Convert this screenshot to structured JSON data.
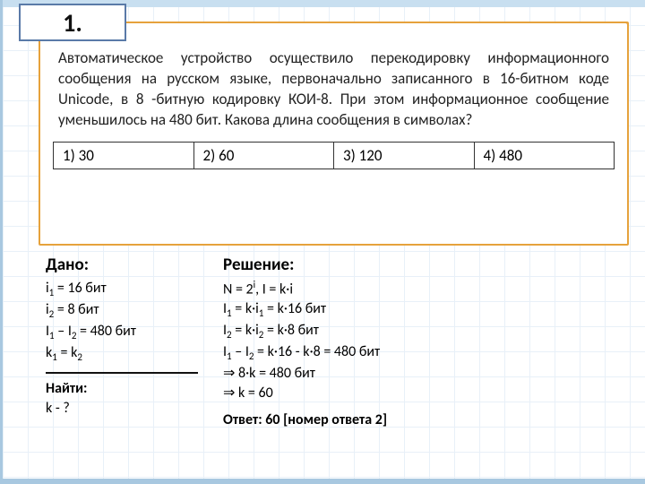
{
  "task_number": "1.",
  "problem_text": "Автоматическое устройство осуществило перекодировку информационного сообщения на русском языке, первоначально записанного в 16-битном коде Unicode, в 8 -битную кодировку КОИ-8. При этом информационное сообщение уменьшилось на 480 бит. Какова длина сообщения в символах?",
  "options": {
    "o1": "1) 30",
    "o2": "2) 60",
    "o3": "3) 120",
    "o4": "4) 480"
  },
  "given": {
    "heading": "Дано:",
    "l1_a": "i",
    "l1_b": " = 16 бит",
    "l2_a": "i",
    "l2_b": " = 8 бит",
    "l3_a": "I",
    "l3_b": " – I",
    "l3_c": " = 480 бит",
    "l4_a": "k",
    "l4_b": " = k",
    "find_h": "Найти:",
    "find": "k - ?"
  },
  "solution": {
    "heading": "Решение:",
    "s1_a": "N = 2",
    "s1_b": ", I = k·i",
    "s2_a": "I",
    "s2_b": " = k·i",
    "s2_c": " = k·16 бит",
    "s3_a": "I",
    "s3_b": " = k·i",
    "s3_c": " = k·8 бит",
    "s4_a": "I",
    "s4_b": " – I",
    "s4_c": " = k·16 - k·8 = 480 бит",
    "s5": "⇒ 8·k = 480 бит",
    "s6": "⇒ k = 60",
    "answer": "Ответ: 60 [номер ответа 2]"
  }
}
